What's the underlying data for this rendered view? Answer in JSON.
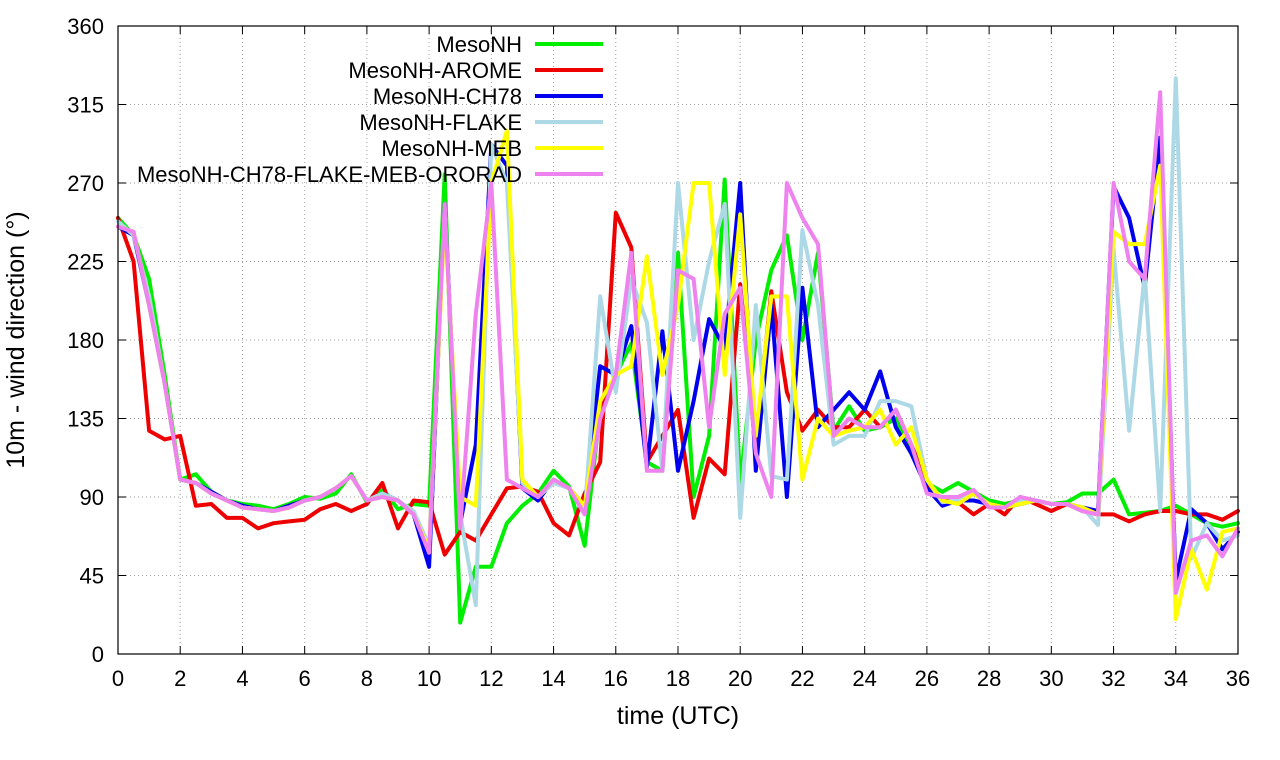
{
  "chart_data": {
    "type": "line",
    "title": "",
    "xlabel": "time (UTC)",
    "ylabel": "10m - wind direction (°)",
    "xlim": [
      0,
      36
    ],
    "ylim": [
      0,
      360
    ],
    "xticks": [
      0,
      2,
      4,
      6,
      8,
      10,
      12,
      14,
      16,
      18,
      20,
      22,
      24,
      26,
      28,
      30,
      32,
      34,
      36
    ],
    "yticks": [
      0,
      45,
      90,
      135,
      180,
      225,
      270,
      315,
      360
    ],
    "grid": true,
    "legend_position": "top-center",
    "series": [
      {
        "name": "MesoNH",
        "color": "#00ee00",
        "x": [
          0,
          0.5,
          1,
          1.5,
          2,
          2.5,
          3,
          3.5,
          4,
          4.5,
          5,
          5.5,
          6,
          6.5,
          7,
          7.5,
          8,
          8.5,
          9,
          9.5,
          10,
          10.5,
          11,
          11.5,
          12,
          12.5,
          13,
          13.5,
          14,
          14.5,
          15,
          15.5,
          16,
          16.5,
          17,
          17.5,
          18,
          18.5,
          19,
          19.5,
          20,
          20.5,
          21,
          21.5,
          22,
          22.5,
          23,
          23.5,
          24,
          24.5,
          25,
          25.5,
          26,
          26.5,
          27,
          27.5,
          28,
          28.5,
          29,
          29.5,
          30,
          30.5,
          31,
          31.5,
          32,
          32.5,
          33,
          33.5,
          34,
          34.5,
          35,
          35.5,
          36
        ],
        "y": [
          250,
          240,
          215,
          160,
          100,
          103,
          93,
          88,
          86,
          85,
          83,
          86,
          90,
          89,
          92,
          103,
          87,
          95,
          83,
          86,
          85,
          275,
          18,
          50,
          50,
          75,
          85,
          92,
          105,
          96,
          62,
          140,
          160,
          178,
          110,
          105,
          230,
          90,
          125,
          272,
          98,
          180,
          220,
          240,
          180,
          230,
          128,
          142,
          128,
          130,
          135,
          115,
          98,
          93,
          98,
          93,
          88,
          86,
          88,
          88,
          86,
          87,
          92,
          92,
          100,
          80,
          81,
          82,
          85,
          80,
          75,
          73,
          75
        ]
      },
      {
        "name": "MesoNH-AROME",
        "color": "#ee0000",
        "x": [
          0,
          0.5,
          1,
          1.5,
          2,
          2.5,
          3,
          3.5,
          4,
          4.5,
          5,
          5.5,
          6,
          6.5,
          7,
          7.5,
          8,
          8.5,
          9,
          9.5,
          10,
          10.5,
          11,
          11.5,
          12,
          12.5,
          13,
          13.5,
          14,
          14.5,
          15,
          15.5,
          16,
          16.5,
          17,
          17.5,
          18,
          18.5,
          19,
          19.5,
          20,
          20.5,
          21,
          21.5,
          22,
          22.5,
          23,
          23.5,
          24,
          24.5,
          25,
          25.5,
          26,
          26.5,
          27,
          27.5,
          28,
          28.5,
          29,
          29.5,
          30,
          30.5,
          31,
          31.5,
          32,
          32.5,
          33,
          33.5,
          34,
          34.5,
          35,
          35.5,
          36
        ],
        "y": [
          250,
          225,
          128,
          123,
          125,
          85,
          86,
          78,
          78,
          72,
          75,
          76,
          77,
          83,
          86,
          82,
          86,
          98,
          72,
          88,
          87,
          57,
          70,
          65,
          80,
          95,
          96,
          93,
          75,
          68,
          92,
          110,
          253,
          233,
          110,
          125,
          140,
          78,
          112,
          103,
          212,
          120,
          208,
          150,
          128,
          140,
          130,
          130,
          140,
          130,
          140,
          120,
          98,
          88,
          87,
          80,
          86,
          80,
          90,
          86,
          82,
          86,
          82,
          80,
          80,
          76,
          80,
          82,
          82,
          80,
          80,
          77,
          82
        ]
      },
      {
        "name": "MesoNH-CH78",
        "color": "#0000ee",
        "x": [
          0,
          0.5,
          1,
          1.5,
          2,
          2.5,
          3,
          3.5,
          4,
          4.5,
          5,
          5.5,
          6,
          6.5,
          7,
          7.5,
          8,
          8.5,
          9,
          9.5,
          10,
          10.5,
          11,
          11.5,
          12,
          12.5,
          13,
          13.5,
          14,
          14.5,
          15,
          15.5,
          16,
          16.5,
          17,
          17.5,
          18,
          18.5,
          19,
          19.5,
          20,
          20.5,
          21,
          21.5,
          22,
          22.5,
          23,
          23.5,
          24,
          24.5,
          25,
          25.5,
          26,
          26.5,
          27,
          27.5,
          28,
          28.5,
          29,
          29.5,
          30,
          30.5,
          31,
          31.5,
          32,
          32.5,
          33,
          33.5,
          34,
          34.5,
          35,
          35.5,
          36
        ],
        "y": [
          245,
          240,
          200,
          155,
          100,
          98,
          93,
          88,
          85,
          83,
          82,
          85,
          88,
          90,
          95,
          102,
          88,
          92,
          88,
          80,
          50,
          258,
          75,
          120,
          292,
          280,
          95,
          88,
          100,
          95,
          85,
          165,
          160,
          188,
          107,
          185,
          105,
          145,
          192,
          175,
          270,
          105,
          200,
          90,
          210,
          130,
          140,
          150,
          140,
          162,
          130,
          115,
          95,
          85,
          88,
          88,
          86,
          84,
          86,
          88,
          86,
          86,
          84,
          82,
          268,
          250,
          210,
          296,
          42,
          83,
          75,
          60,
          70
        ]
      },
      {
        "name": "MesoNH-FLAKE",
        "color": "#add8e6",
        "x": [
          0,
          0.5,
          1,
          1.5,
          2,
          2.5,
          3,
          3.5,
          4,
          4.5,
          5,
          5.5,
          6,
          6.5,
          7,
          7.5,
          8,
          8.5,
          9,
          9.5,
          10,
          10.5,
          11,
          11.5,
          12,
          12.5,
          13,
          13.5,
          14,
          14.5,
          15,
          15.5,
          16,
          16.5,
          17,
          17.5,
          18,
          18.5,
          19,
          19.5,
          20,
          20.5,
          21,
          21.5,
          22,
          22.5,
          23,
          23.5,
          24,
          24.5,
          25,
          25.5,
          26,
          26.5,
          27,
          27.5,
          28,
          28.5,
          29,
          29.5,
          30,
          30.5,
          31,
          31.5,
          32,
          32.5,
          33,
          33.5,
          34,
          34.5,
          35,
          35.5,
          36
        ],
        "y": [
          248,
          240,
          205,
          155,
          100,
          98,
          92,
          88,
          84,
          83,
          82,
          84,
          88,
          90,
          95,
          102,
          88,
          92,
          88,
          82,
          62,
          255,
          80,
          28,
          292,
          270,
          98,
          90,
          98,
          95,
          80,
          205,
          150,
          215,
          190,
          105,
          270,
          180,
          225,
          258,
          78,
          200,
          102,
          100,
          243,
          200,
          120,
          125,
          125,
          145,
          145,
          142,
          100,
          87,
          88,
          92,
          86,
          84,
          88,
          88,
          86,
          86,
          84,
          74,
          232,
          128,
          218,
          82,
          330,
          55,
          75,
          65,
          68
        ]
      },
      {
        "name": "MesoNH-MEB",
        "color": "#ffff00",
        "x": [
          0,
          0.5,
          1,
          1.5,
          2,
          2.5,
          3,
          3.5,
          4,
          4.5,
          5,
          5.5,
          6,
          6.5,
          7,
          7.5,
          8,
          8.5,
          9,
          9.5,
          10,
          10.5,
          11,
          11.5,
          12,
          12.5,
          13,
          13.5,
          14,
          14.5,
          15,
          15.5,
          16,
          16.5,
          17,
          17.5,
          18,
          18.5,
          19,
          19.5,
          20,
          20.5,
          21,
          21.5,
          22,
          22.5,
          23,
          23.5,
          24,
          24.5,
          25,
          25.5,
          26,
          26.5,
          27,
          27.5,
          28,
          28.5,
          29,
          29.5,
          30,
          30.5,
          31,
          31.5,
          32,
          32.5,
          33,
          33.5,
          34,
          34.5,
          35,
          35.5,
          36
        ],
        "y": [
          245,
          242,
          200,
          155,
          100,
          98,
          92,
          88,
          84,
          83,
          82,
          84,
          88,
          90,
          95,
          102,
          88,
          90,
          88,
          80,
          60,
          250,
          90,
          85,
          270,
          300,
          100,
          90,
          100,
          95,
          85,
          145,
          160,
          165,
          228,
          160,
          200,
          270,
          270,
          160,
          252,
          125,
          205,
          205,
          100,
          135,
          125,
          128,
          130,
          140,
          120,
          130,
          100,
          88,
          86,
          92,
          86,
          84,
          86,
          88,
          86,
          86,
          84,
          80,
          242,
          235,
          235,
          280,
          20,
          60,
          37,
          70,
          72
        ]
      },
      {
        "name": "MesoNH-CH78-FLAKE-MEB-ORORAD",
        "color": "#ee82ee",
        "x": [
          0,
          0.5,
          1,
          1.5,
          2,
          2.5,
          3,
          3.5,
          4,
          4.5,
          5,
          5.5,
          6,
          6.5,
          7,
          7.5,
          8,
          8.5,
          9,
          9.5,
          10,
          10.5,
          11,
          11.5,
          12,
          12.5,
          13,
          13.5,
          14,
          14.5,
          15,
          15.5,
          16,
          16.5,
          17,
          17.5,
          18,
          18.5,
          19,
          19.5,
          20,
          20.5,
          21,
          21.5,
          22,
          22.5,
          23,
          23.5,
          24,
          24.5,
          25,
          25.5,
          26,
          26.5,
          27,
          27.5,
          28,
          28.5,
          29,
          29.5,
          30,
          30.5,
          31,
          31.5,
          32,
          32.5,
          33,
          33.5,
          34,
          34.5,
          35,
          35.5,
          36
        ],
        "y": [
          245,
          242,
          200,
          155,
          100,
          98,
          92,
          88,
          84,
          83,
          82,
          84,
          88,
          90,
          95,
          102,
          88,
          90,
          88,
          80,
          58,
          258,
          72,
          195,
          270,
          100,
          95,
          90,
          100,
          95,
          80,
          135,
          160,
          230,
          105,
          105,
          220,
          215,
          130,
          195,
          210,
          115,
          90,
          270,
          250,
          235,
          125,
          135,
          130,
          130,
          140,
          120,
          92,
          90,
          90,
          94,
          84,
          84,
          90,
          88,
          86,
          86,
          82,
          80,
          270,
          225,
          215,
          322,
          35,
          65,
          68,
          56,
          72
        ]
      }
    ]
  }
}
